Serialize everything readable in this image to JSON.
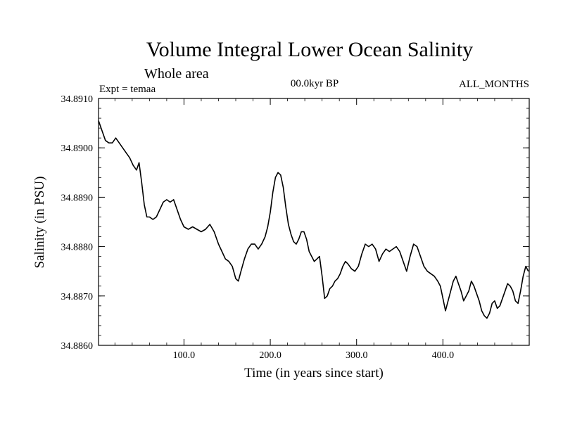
{
  "chart_data": {
    "type": "line",
    "title": "Volume Integral Lower Ocean Salinity",
    "subtitle": "Whole area",
    "annotations": {
      "left": "Expt = temaa",
      "center": "00.0kyr BP",
      "right": "ALL_MONTHS"
    },
    "xlabel": "Time (in years since start)",
    "ylabel": "Salinity (in PSU)",
    "xlim": [
      1,
      500
    ],
    "ylim": [
      34.886,
      34.891
    ],
    "x_ticks": [
      100,
      200,
      300,
      400
    ],
    "x_tick_labels": [
      "100.0",
      "200.0",
      "300.0",
      "400.0"
    ],
    "y_ticks": [
      34.886,
      34.887,
      34.888,
      34.889,
      34.89,
      34.891
    ],
    "y_tick_labels": [
      "34.8860",
      "34.8870",
      "34.8880",
      "34.8890",
      "34.8900",
      "34.8910"
    ],
    "grid": false,
    "series": [
      {
        "color": "#000000",
        "points": [
          [
            1,
            34.89055
          ],
          [
            5,
            34.89035
          ],
          [
            9,
            34.89015
          ],
          [
            13,
            34.8901
          ],
          [
            17,
            34.8901
          ],
          [
            21,
            34.8902
          ],
          [
            25,
            34.8901
          ],
          [
            29,
            34.89
          ],
          [
            33,
            34.8899
          ],
          [
            37,
            34.8898
          ],
          [
            41,
            34.88965
          ],
          [
            45,
            34.88955
          ],
          [
            48,
            34.8897
          ],
          [
            51,
            34.8893
          ],
          [
            54,
            34.88885
          ],
          [
            57,
            34.8886
          ],
          [
            60,
            34.8886
          ],
          [
            64,
            34.88855
          ],
          [
            68,
            34.8886
          ],
          [
            72,
            34.88875
          ],
          [
            76,
            34.8889
          ],
          [
            80,
            34.88895
          ],
          [
            84,
            34.8889
          ],
          [
            88,
            34.88895
          ],
          [
            92,
            34.88875
          ],
          [
            96,
            34.88855
          ],
          [
            100,
            34.8884
          ],
          [
            105,
            34.88835
          ],
          [
            110,
            34.8884
          ],
          [
            115,
            34.88835
          ],
          [
            120,
            34.8883
          ],
          [
            125,
            34.88835
          ],
          [
            130,
            34.88845
          ],
          [
            135,
            34.8883
          ],
          [
            140,
            34.88805
          ],
          [
            144,
            34.8879
          ],
          [
            148,
            34.88775
          ],
          [
            152,
            34.8877
          ],
          [
            156,
            34.8876
          ],
          [
            160,
            34.88735
          ],
          [
            163,
            34.8873
          ],
          [
            166,
            34.8875
          ],
          [
            170,
            34.88775
          ],
          [
            174,
            34.88795
          ],
          [
            178,
            34.88805
          ],
          [
            182,
            34.88805
          ],
          [
            186,
            34.88795
          ],
          [
            190,
            34.88805
          ],
          [
            194,
            34.8882
          ],
          [
            197,
            34.8884
          ],
          [
            200,
            34.8887
          ],
          [
            203,
            34.8891
          ],
          [
            206,
            34.8894
          ],
          [
            209,
            34.8895
          ],
          [
            212,
            34.88945
          ],
          [
            215,
            34.8892
          ],
          [
            218,
            34.8888
          ],
          [
            221,
            34.88845
          ],
          [
            224,
            34.88825
          ],
          [
            227,
            34.8881
          ],
          [
            230,
            34.88805
          ],
          [
            233,
            34.88815
          ],
          [
            236,
            34.8883
          ],
          [
            239,
            34.8883
          ],
          [
            242,
            34.88815
          ],
          [
            245,
            34.8879
          ],
          [
            248,
            34.8878
          ],
          [
            251,
            34.8877
          ],
          [
            254,
            34.88775
          ],
          [
            257,
            34.8878
          ],
          [
            260,
            34.8874
          ],
          [
            263,
            34.88695
          ],
          [
            266,
            34.887
          ],
          [
            269,
            34.88715
          ],
          [
            272,
            34.8872
          ],
          [
            275,
            34.8873
          ],
          [
            278,
            34.88735
          ],
          [
            281,
            34.88745
          ],
          [
            284,
            34.8876
          ],
          [
            287,
            34.8877
          ],
          [
            290,
            34.88765
          ],
          [
            294,
            34.88755
          ],
          [
            298,
            34.8875
          ],
          [
            302,
            34.8876
          ],
          [
            306,
            34.88785
          ],
          [
            310,
            34.88805
          ],
          [
            314,
            34.888
          ],
          [
            318,
            34.88805
          ],
          [
            322,
            34.88795
          ],
          [
            326,
            34.8877
          ],
          [
            330,
            34.88785
          ],
          [
            334,
            34.88795
          ],
          [
            338,
            34.8879
          ],
          [
            342,
            34.88795
          ],
          [
            346,
            34.888
          ],
          [
            350,
            34.8879
          ],
          [
            354,
            34.8877
          ],
          [
            358,
            34.8875
          ],
          [
            362,
            34.8878
          ],
          [
            366,
            34.88805
          ],
          [
            370,
            34.888
          ],
          [
            374,
            34.8878
          ],
          [
            378,
            34.8876
          ],
          [
            382,
            34.8875
          ],
          [
            386,
            34.88745
          ],
          [
            390,
            34.8874
          ],
          [
            394,
            34.8873
          ],
          [
            397,
            34.8872
          ],
          [
            400,
            34.88695
          ],
          [
            403,
            34.8867
          ],
          [
            406,
            34.8869
          ],
          [
            409,
            34.8871
          ],
          [
            412,
            34.8873
          ],
          [
            415,
            34.8874
          ],
          [
            418,
            34.88725
          ],
          [
            421,
            34.8871
          ],
          [
            424,
            34.8869
          ],
          [
            427,
            34.887
          ],
          [
            430,
            34.8871
          ],
          [
            433,
            34.8873
          ],
          [
            436,
            34.8872
          ],
          [
            439,
            34.88705
          ],
          [
            442,
            34.8869
          ],
          [
            445,
            34.8867
          ],
          [
            448,
            34.8866
          ],
          [
            451,
            34.88655
          ],
          [
            454,
            34.88665
          ],
          [
            457,
            34.88685
          ],
          [
            460,
            34.8869
          ],
          [
            463,
            34.88675
          ],
          [
            466,
            34.8868
          ],
          [
            469,
            34.88695
          ],
          [
            472,
            34.8871
          ],
          [
            475,
            34.88725
          ],
          [
            478,
            34.8872
          ],
          [
            481,
            34.8871
          ],
          [
            484,
            34.8869
          ],
          [
            487,
            34.88685
          ],
          [
            490,
            34.8871
          ],
          [
            493,
            34.8874
          ],
          [
            496,
            34.8876
          ],
          [
            499,
            34.8875
          ]
        ]
      }
    ]
  }
}
